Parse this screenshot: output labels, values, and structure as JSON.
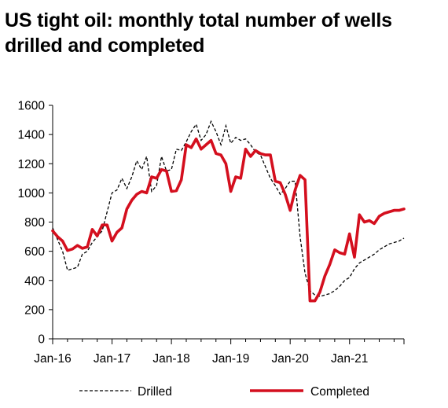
{
  "title_lines": [
    "US tight oil: monthly total number of wells",
    "drilled and completed"
  ],
  "colors": {
    "drilled": "#000000",
    "completed": "#d40f1e",
    "axis": "#000000"
  },
  "chart_data": {
    "type": "line",
    "title": "US tight oil: monthly total number of wells drilled and completed",
    "xlabel": "",
    "ylabel": "",
    "ylim": [
      0,
      1600
    ],
    "yticks": [
      0,
      200,
      400,
      600,
      800,
      1000,
      1200,
      1400,
      1600
    ],
    "xticks": [
      "Jan-16",
      "Jan-17",
      "Jan-18",
      "Jan-19",
      "Jan-20",
      "Jan-21"
    ],
    "x_start": "Jan-16",
    "x_end": "Dec-21",
    "grid": false,
    "legend_position": "bottom",
    "series": [
      {
        "name": "Drilled",
        "style": "dashed",
        "values": [
          760,
          680,
          600,
          470,
          480,
          490,
          580,
          600,
          660,
          700,
          740,
          870,
          1000,
          1020,
          1100,
          1030,
          1110,
          1220,
          1160,
          1250,
          1010,
          1050,
          1250,
          1150,
          1160,
          1300,
          1290,
          1350,
          1420,
          1470,
          1360,
          1400,
          1490,
          1420,
          1330,
          1460,
          1340,
          1380,
          1360,
          1370,
          1330,
          1280,
          1260,
          1180,
          1100,
          1050,
          990,
          1030,
          1080,
          1080,
          700,
          450,
          330,
          300,
          290,
          300,
          310,
          330,
          360,
          400,
          420,
          480,
          520,
          540,
          560,
          580,
          610,
          630,
          650,
          660,
          670,
          690
        ]
      },
      {
        "name": "Completed",
        "style": "solid",
        "values": [
          740,
          700,
          670,
          605,
          615,
          640,
          620,
          630,
          750,
          705,
          780,
          780,
          670,
          730,
          760,
          890,
          950,
          990,
          1010,
          1000,
          1110,
          1100,
          1160,
          1150,
          1010,
          1015,
          1090,
          1330,
          1310,
          1370,
          1300,
          1330,
          1360,
          1270,
          1260,
          1200,
          1010,
          1110,
          1100,
          1300,
          1250,
          1290,
          1270,
          1260,
          1260,
          1080,
          1070,
          990,
          880,
          1020,
          1120,
          1090,
          260,
          260,
          320,
          430,
          510,
          610,
          590,
          580,
          720,
          560,
          850,
          800,
          810,
          790,
          840,
          860,
          870,
          880,
          880,
          890
        ]
      }
    ]
  }
}
